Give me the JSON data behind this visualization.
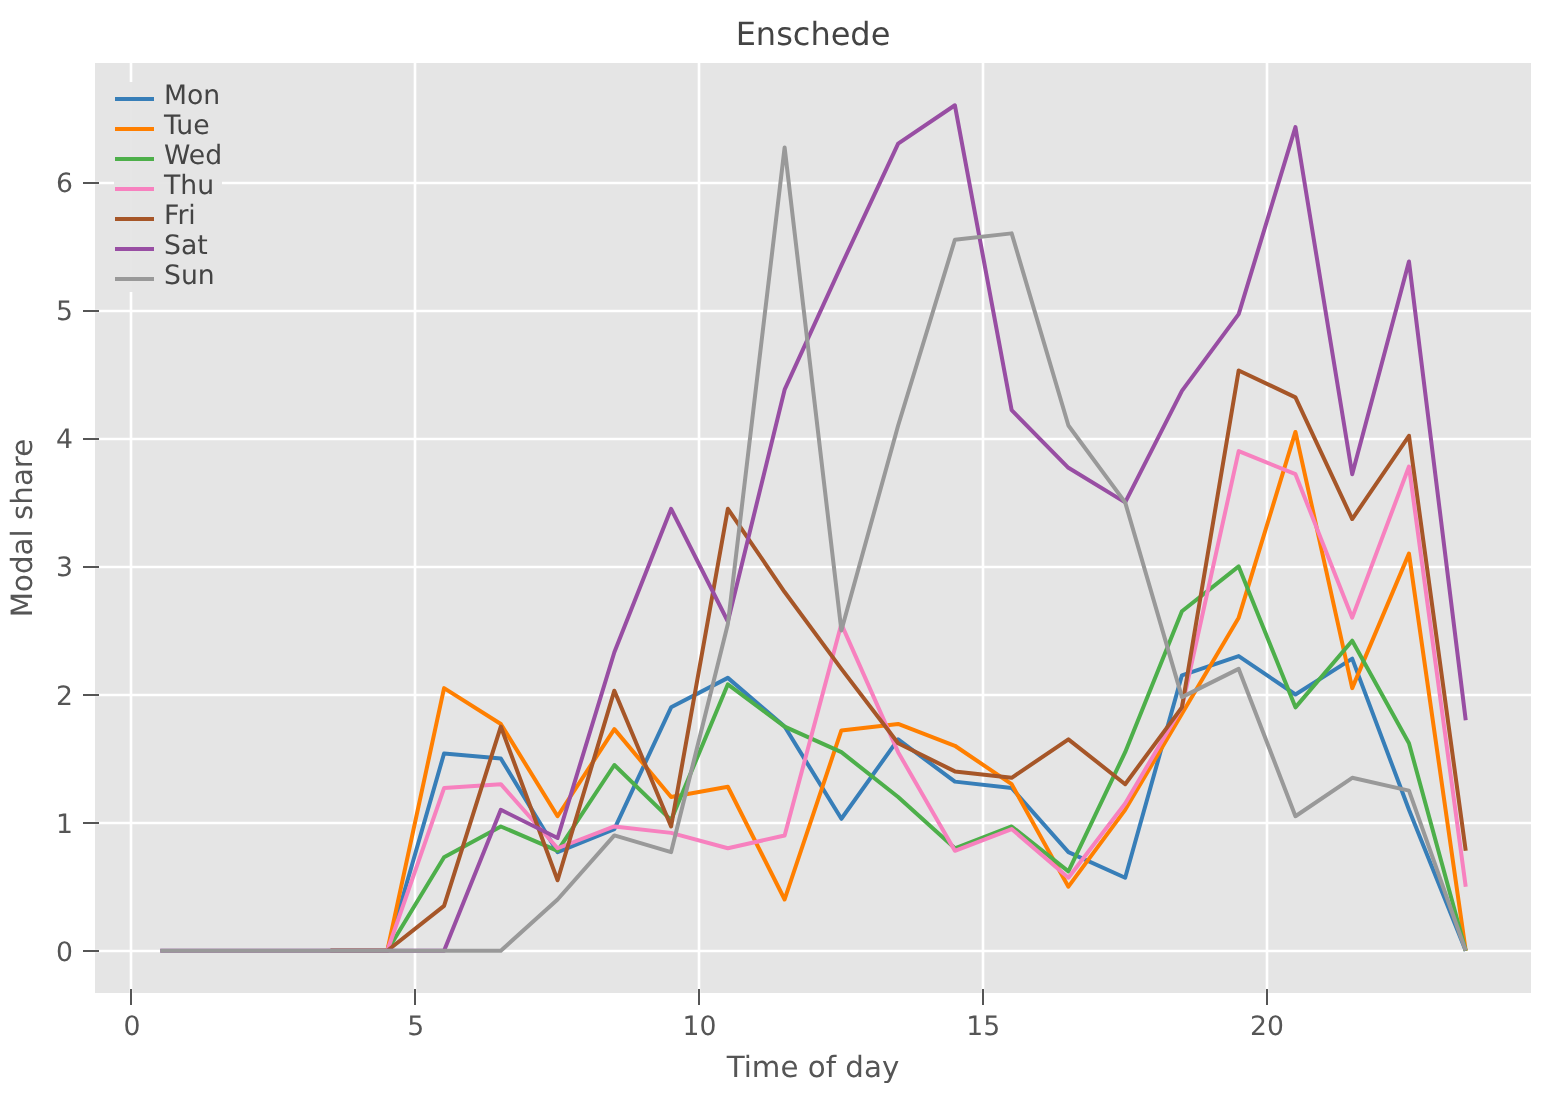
{
  "chart_data": {
    "type": "line",
    "title": "Enschede",
    "xlabel": "Time of day",
    "ylabel": "Modal share",
    "x": [
      0.5,
      1.5,
      2.5,
      3.5,
      4.5,
      5.5,
      6.5,
      7.5,
      8.5,
      9.5,
      10.5,
      11.5,
      12.5,
      13.5,
      14.5,
      15.5,
      16.5,
      17.5,
      18.5,
      19.5,
      20.5,
      21.5,
      22.5,
      23.5
    ],
    "xlim": [
      -0.65,
      24.65
    ],
    "xticks": [
      0,
      5,
      10,
      15,
      20
    ],
    "ylim": [
      -0.33,
      6.93
    ],
    "yticks": [
      0,
      1,
      2,
      3,
      4,
      5,
      6
    ],
    "grid": true,
    "legend": "top left",
    "line_style": "solid",
    "series": [
      {
        "name": "Mon",
        "color": "#377eb8",
        "values": [
          null,
          null,
          null,
          0,
          0,
          1.54,
          1.5,
          0.77,
          0.95,
          1.9,
          2.13,
          1.75,
          1.03,
          1.65,
          1.32,
          1.27,
          0.77,
          0.57,
          2.15,
          2.3,
          2.0,
          2.28,
          1.1,
          0
        ]
      },
      {
        "name": "Tue",
        "color": "#ff7f00",
        "values": [
          null,
          null,
          null,
          0,
          0,
          2.05,
          1.77,
          1.05,
          1.73,
          1.2,
          1.28,
          0.4,
          1.72,
          1.77,
          1.6,
          1.3,
          0.5,
          1.1,
          1.85,
          2.6,
          4.05,
          2.05,
          3.1,
          0
        ]
      },
      {
        "name": "Wed",
        "color": "#4daf4a",
        "values": [
          null,
          null,
          null,
          0,
          0,
          0.73,
          0.97,
          0.78,
          1.45,
          1.02,
          2.08,
          1.75,
          1.55,
          1.2,
          0.8,
          0.97,
          0.62,
          1.55,
          2.65,
          3.0,
          1.9,
          2.42,
          1.62,
          0
        ]
      },
      {
        "name": "Thu",
        "color": "#f781bf",
        "values": [
          null,
          null,
          null,
          0,
          0,
          1.27,
          1.3,
          0.8,
          0.97,
          0.92,
          0.8,
          0.9,
          2.55,
          1.55,
          0.78,
          0.95,
          0.57,
          1.15,
          1.9,
          3.9,
          3.72,
          2.6,
          3.78,
          0.5
        ]
      },
      {
        "name": "Fri",
        "color": "#a65628",
        "values": [
          null,
          null,
          null,
          0,
          0,
          0.35,
          1.75,
          0.55,
          2.03,
          0.97,
          3.45,
          2.8,
          2.2,
          1.62,
          1.4,
          1.35,
          1.65,
          1.3,
          1.9,
          4.53,
          4.32,
          3.37,
          4.02,
          0.78
        ]
      },
      {
        "name": "Sat",
        "color": "#984ea3",
        "values": [
          0,
          0,
          0,
          0,
          0,
          0,
          1.1,
          0.88,
          2.33,
          3.45,
          2.57,
          4.38,
          5.35,
          6.3,
          6.6,
          4.22,
          3.77,
          3.5,
          4.37,
          4.97,
          6.43,
          3.72,
          5.38,
          1.8
        ]
      },
      {
        "name": "Sun",
        "color": "#999999",
        "values": [
          0,
          0,
          0,
          0,
          0,
          0,
          0,
          0.4,
          0.9,
          0.77,
          2.55,
          6.27,
          2.5,
          4.1,
          5.55,
          5.6,
          4.1,
          3.5,
          1.98,
          2.2,
          1.05,
          1.35,
          1.25,
          0
        ]
      }
    ]
  }
}
